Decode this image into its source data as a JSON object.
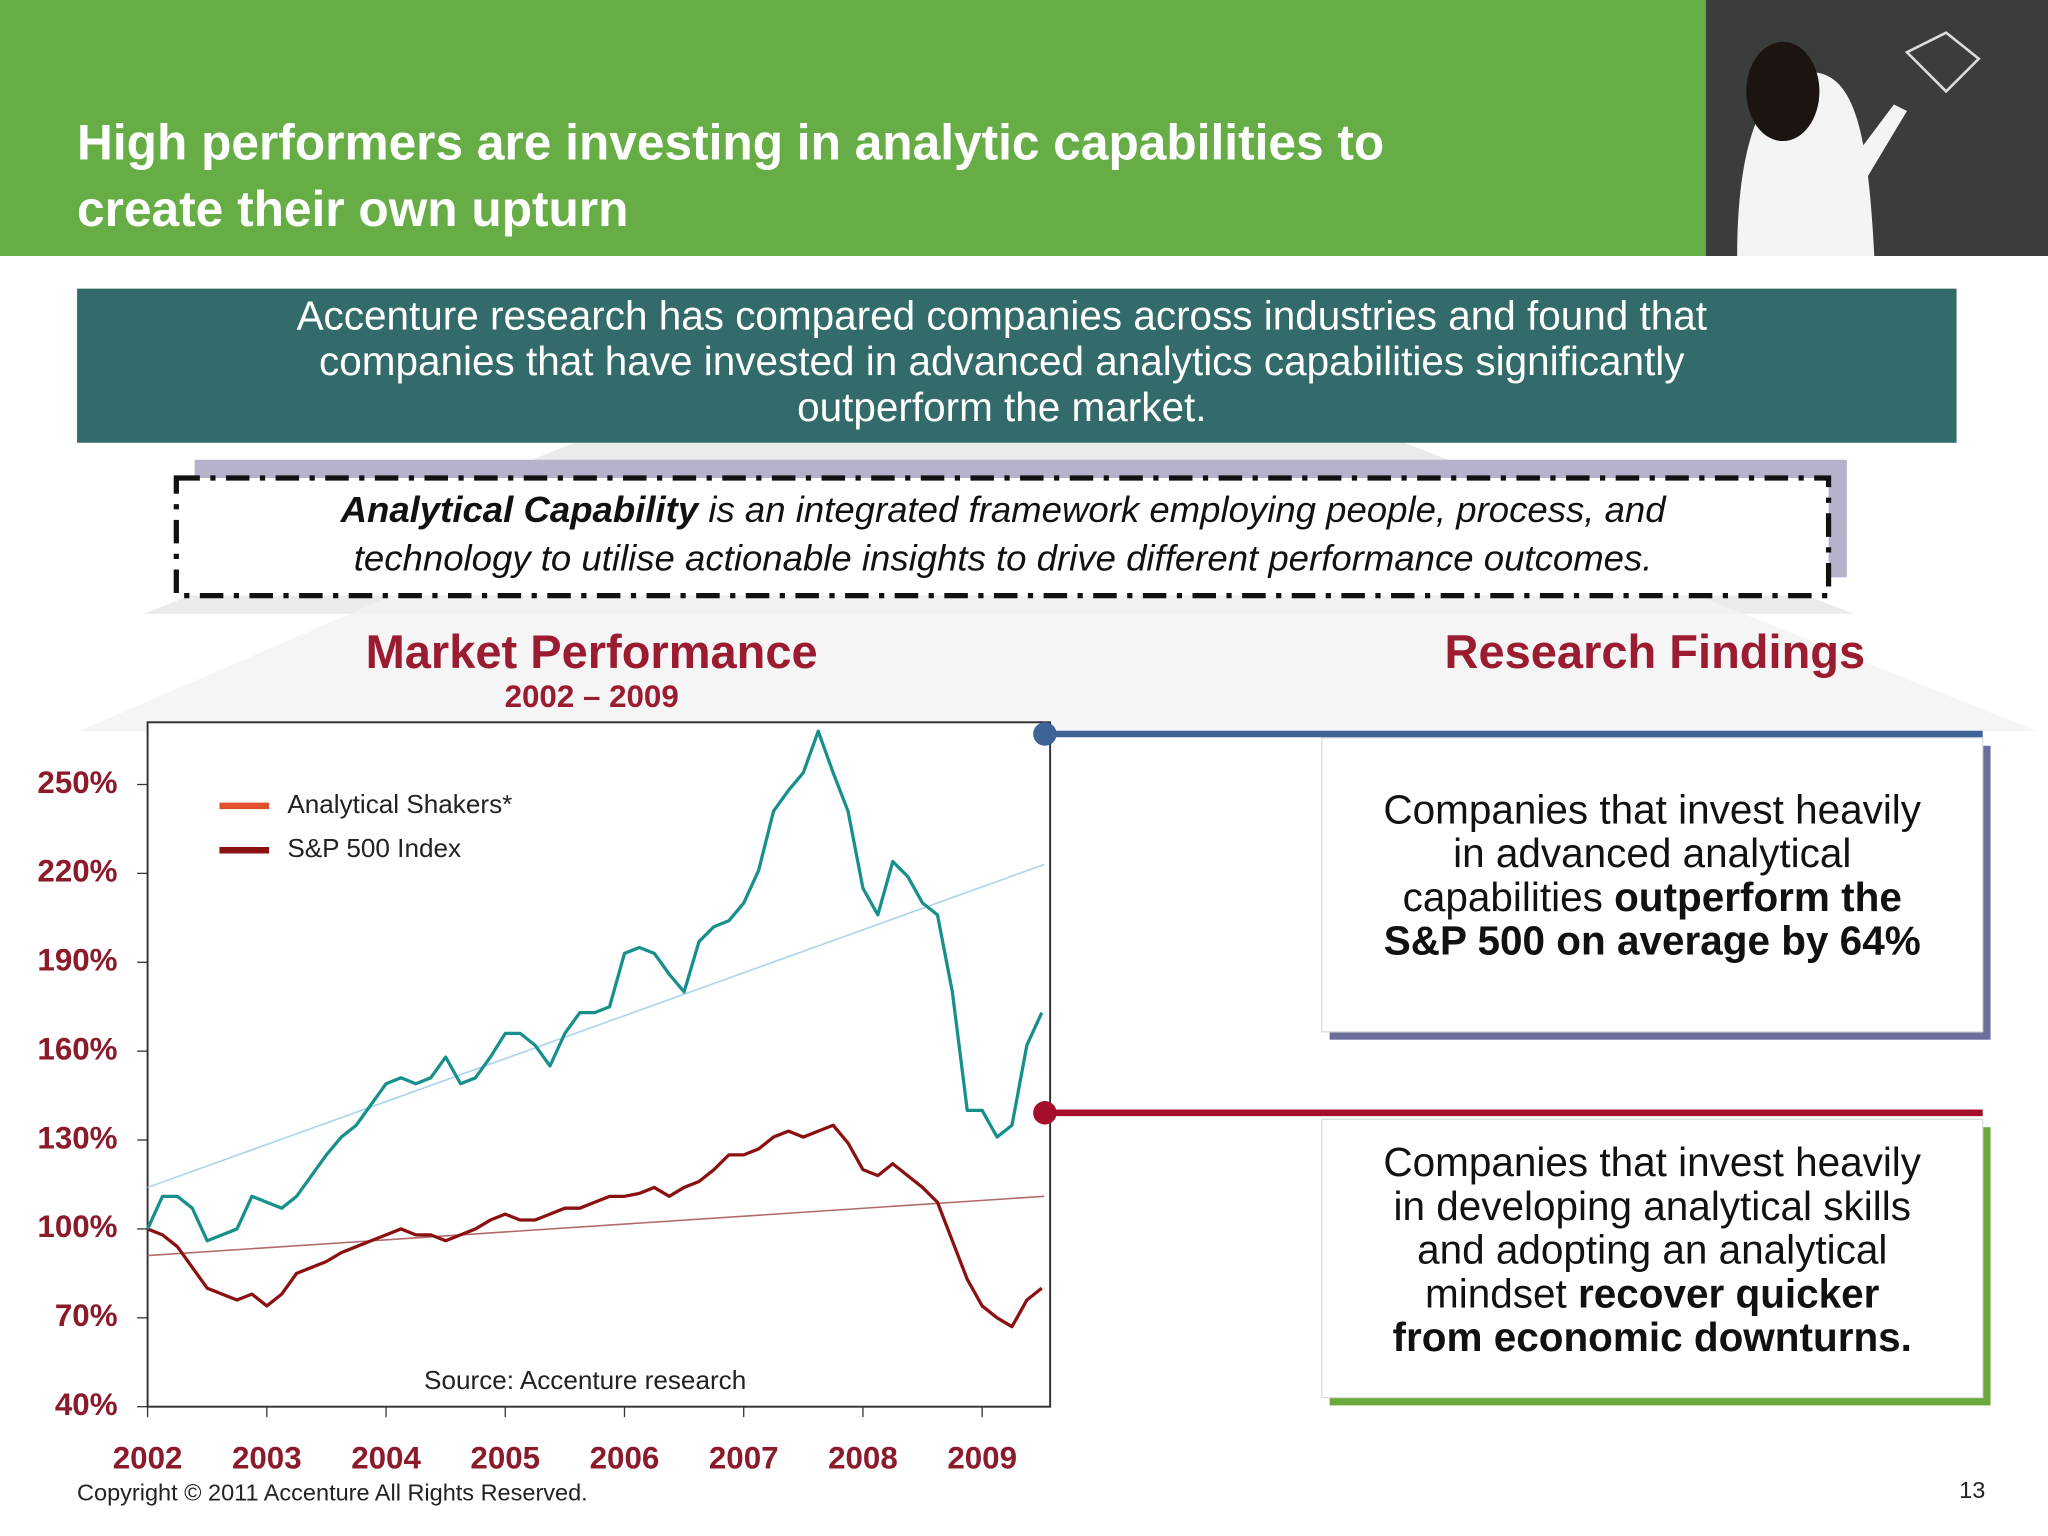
{
  "header": {
    "title_lines": [
      "High performers are investing in analytic capabilities to",
      "create their own upturn"
    ]
  },
  "intro_lines": [
    "Accenture research has compared companies across industries and found that",
    "companies that have invested in advanced analytics capabilities significantly",
    "outperform the market."
  ],
  "definition_lines": [
    [
      {
        "text": "Analytical Capability",
        "bold": true
      },
      {
        "text": " is an integrated framework employing people, process, and"
      }
    ],
    [
      {
        "text": "technology to utilise actionable insights to drive different performance outcomes."
      }
    ]
  ],
  "findings": {
    "title": "Research Findings",
    "items": [
      {
        "color": "#3c6496",
        "shadow": "#6b6d9a",
        "lines": [
          [
            {
              "text": "Companies that invest heavily"
            }
          ],
          [
            {
              "text": "in advanced analytical"
            }
          ],
          [
            {
              "text": "capabilities "
            },
            {
              "text": "outperform the",
              "bold": true
            }
          ],
          [
            {
              "text": "S&P 500 on average by 64%",
              "bold": true
            }
          ]
        ]
      },
      {
        "color": "#a50e2c",
        "shadow": "#6aaa3a",
        "lines": [
          [
            {
              "text": "Companies that invest heavily"
            }
          ],
          [
            {
              "text": "in developing analytical skills"
            }
          ],
          [
            {
              "text": "and adopting an analytical"
            }
          ],
          [
            {
              "text": "mindset "
            },
            {
              "text": "recover quicker",
              "bold": true
            }
          ],
          [
            {
              "text": "from economic downturns.",
              "bold": true
            }
          ]
        ]
      }
    ]
  },
  "footer": {
    "copyright": "Copyright © 2011 Accenture All Rights Reserved.",
    "page": "13"
  },
  "chart_data": {
    "type": "line",
    "title": "Market Performance",
    "subtitle": "2002 – 2009",
    "source": "Source: Accenture research",
    "xlim": [
      2002,
      2009.57
    ],
    "ylim": [
      40,
      271
    ],
    "xticks": [
      2002,
      2003,
      2004,
      2005,
      2006,
      2007,
      2008,
      2009
    ],
    "yticks": [
      {
        "value": 40,
        "label": "40%"
      },
      {
        "value": 70,
        "label": "70%"
      },
      {
        "value": 100,
        "label": "100%"
      },
      {
        "value": 130,
        "label": "130%"
      },
      {
        "value": 160,
        "label": "160%"
      },
      {
        "value": 190,
        "label": "190%"
      },
      {
        "value": 220,
        "label": "220%"
      },
      {
        "value": 250,
        "label": "250%"
      }
    ],
    "x": [
      2002.0,
      2002.125,
      2002.25,
      2002.375,
      2002.5,
      2002.625,
      2002.75,
      2002.875,
      2003.0,
      2003.125,
      2003.25,
      2003.375,
      2003.5,
      2003.625,
      2003.75,
      2003.875,
      2004.0,
      2004.125,
      2004.25,
      2004.375,
      2004.5,
      2004.625,
      2004.75,
      2004.875,
      2005.0,
      2005.125,
      2005.25,
      2005.375,
      2005.5,
      2005.625,
      2005.75,
      2005.875,
      2006.0,
      2006.125,
      2006.25,
      2006.375,
      2006.5,
      2006.625,
      2006.75,
      2006.875,
      2007.0,
      2007.125,
      2007.25,
      2007.375,
      2007.5,
      2007.625,
      2007.75,
      2007.875,
      2008.0,
      2008.125,
      2008.25,
      2008.375,
      2008.5,
      2008.625,
      2008.75,
      2008.875,
      2009.0,
      2009.125,
      2009.25,
      2009.375,
      2009.5
    ],
    "legend": "upper left",
    "series": [
      {
        "name": "Analytical Shakers*",
        "color": "#17908c",
        "legend_color": "#e0502a",
        "values": [
          100,
          111,
          111,
          107,
          96,
          98,
          100,
          111,
          109,
          107,
          111,
          118,
          125,
          131,
          135,
          142,
          149,
          151,
          149,
          151,
          158,
          149,
          151,
          158,
          166,
          166,
          162,
          155,
          166,
          173,
          173,
          175,
          193,
          195,
          193,
          186,
          180,
          197,
          202,
          204,
          210,
          221,
          241,
          248,
          254,
          268,
          254,
          241,
          215,
          206,
          224,
          219,
          210,
          206,
          180,
          140,
          140,
          131,
          135,
          162,
          173
        ]
      },
      {
        "name": "S&P 500 Index",
        "color": "#8b1010",
        "legend_color": "#8b1010",
        "values": [
          100,
          98,
          94,
          87,
          80,
          78,
          76,
          78,
          74,
          78,
          85,
          87,
          89,
          92,
          94,
          96,
          98,
          100,
          98,
          98,
          96,
          98,
          100,
          103,
          105,
          103,
          103,
          105,
          107,
          107,
          109,
          111,
          111,
          112,
          114,
          111,
          114,
          116,
          120,
          125,
          125,
          127,
          131,
          133,
          131,
          133,
          135,
          129,
          120,
          118,
          122,
          118,
          114,
          109,
          96,
          83,
          74,
          70,
          67,
          76,
          80
        ]
      },
      {
        "color": "#a8d4ec",
        "x": [
          2002,
          2009.52
        ],
        "values": [
          114,
          223
        ]
      },
      {
        "color": "#b06a6a",
        "x": [
          2002,
          2009.52
        ],
        "values": [
          91,
          111
        ]
      }
    ]
  }
}
